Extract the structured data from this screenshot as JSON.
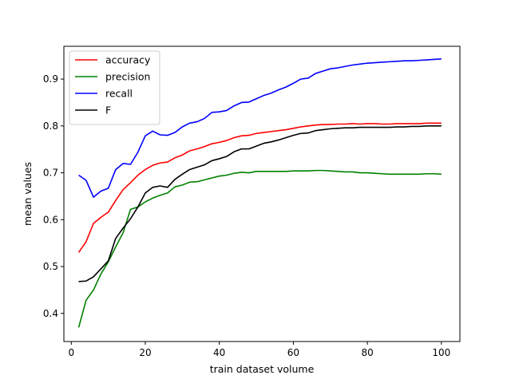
{
  "chart_data": {
    "type": "line",
    "title": "",
    "xlabel": "train dataset volume",
    "ylabel": "mean values",
    "xlim": [
      -2,
      105
    ],
    "ylim": [
      0.34,
      0.97
    ],
    "xticks": [
      0,
      20,
      40,
      60,
      80,
      100
    ],
    "yticks": [
      0.4,
      0.5,
      0.6,
      0.7,
      0.8,
      0.9
    ],
    "grid": false,
    "legend_position": "upper-left",
    "x": [
      2,
      4,
      6,
      8,
      10,
      12,
      14,
      16,
      18,
      20,
      22,
      24,
      26,
      28,
      30,
      32,
      34,
      36,
      38,
      40,
      42,
      44,
      46,
      48,
      50,
      52,
      54,
      56,
      58,
      60,
      62,
      64,
      66,
      68,
      70,
      72,
      74,
      76,
      78,
      80,
      82,
      84,
      86,
      88,
      90,
      92,
      94,
      96,
      98,
      100
    ],
    "series": [
      {
        "name": "accuracy",
        "color": "#ff0000",
        "values": [
          0.53,
          0.553,
          0.592,
          0.605,
          0.616,
          0.641,
          0.664,
          0.679,
          0.695,
          0.707,
          0.716,
          0.721,
          0.723,
          0.732,
          0.738,
          0.747,
          0.751,
          0.756,
          0.762,
          0.765,
          0.769,
          0.775,
          0.779,
          0.78,
          0.784,
          0.786,
          0.788,
          0.79,
          0.792,
          0.795,
          0.798,
          0.8,
          0.802,
          0.803,
          0.803,
          0.804,
          0.804,
          0.805,
          0.804,
          0.805,
          0.805,
          0.804,
          0.804,
          0.805,
          0.805,
          0.805,
          0.805,
          0.806,
          0.806,
          0.806
        ]
      },
      {
        "name": "precision",
        "color": "#008000",
        "values": [
          0.37,
          0.428,
          0.45,
          0.484,
          0.51,
          0.542,
          0.572,
          0.622,
          0.627,
          0.638,
          0.646,
          0.652,
          0.657,
          0.67,
          0.674,
          0.68,
          0.681,
          0.685,
          0.689,
          0.693,
          0.695,
          0.699,
          0.701,
          0.7,
          0.703,
          0.703,
          0.703,
          0.703,
          0.703,
          0.704,
          0.704,
          0.704,
          0.705,
          0.705,
          0.704,
          0.703,
          0.702,
          0.702,
          0.7,
          0.7,
          0.699,
          0.698,
          0.697,
          0.697,
          0.697,
          0.697,
          0.697,
          0.698,
          0.698,
          0.697
        ]
      },
      {
        "name": "recall",
        "color": "#0000ff",
        "values": [
          0.695,
          0.684,
          0.648,
          0.661,
          0.667,
          0.707,
          0.72,
          0.718,
          0.744,
          0.779,
          0.789,
          0.781,
          0.78,
          0.786,
          0.798,
          0.806,
          0.809,
          0.816,
          0.829,
          0.83,
          0.833,
          0.843,
          0.85,
          0.851,
          0.858,
          0.865,
          0.87,
          0.877,
          0.883,
          0.891,
          0.9,
          0.902,
          0.912,
          0.917,
          0.922,
          0.924,
          0.927,
          0.93,
          0.932,
          0.934,
          0.935,
          0.936,
          0.937,
          0.938,
          0.939,
          0.939,
          0.94,
          0.941,
          0.942,
          0.943
        ]
      },
      {
        "name": "F",
        "color": "#000000",
        "values": [
          0.468,
          0.469,
          0.478,
          0.495,
          0.512,
          0.56,
          0.582,
          0.602,
          0.627,
          0.657,
          0.669,
          0.672,
          0.669,
          0.686,
          0.697,
          0.707,
          0.712,
          0.717,
          0.726,
          0.73,
          0.735,
          0.745,
          0.751,
          0.751,
          0.757,
          0.763,
          0.766,
          0.77,
          0.775,
          0.78,
          0.784,
          0.785,
          0.79,
          0.792,
          0.794,
          0.795,
          0.796,
          0.796,
          0.797,
          0.797,
          0.797,
          0.797,
          0.797,
          0.798,
          0.798,
          0.799,
          0.799,
          0.8,
          0.8,
          0.8
        ]
      }
    ]
  }
}
